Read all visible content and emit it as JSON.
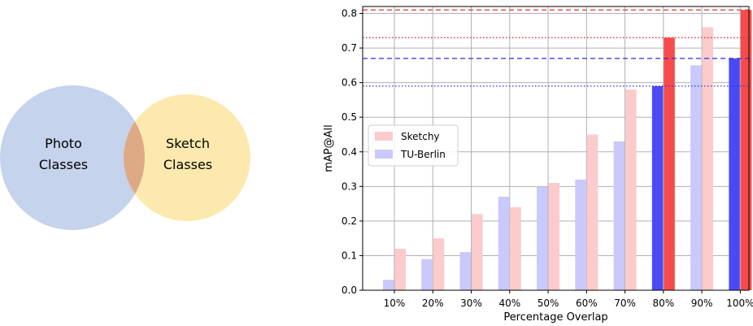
{
  "venn": {
    "left_label_line1": "Photo",
    "left_label_line2": "Classes",
    "right_label_line1": "Sketch",
    "right_label_line2": "Classes",
    "colors": {
      "left": "#c5d3ec",
      "right": "#fde9ae",
      "overlap": "#deaa86"
    }
  },
  "chart_data": {
    "type": "bar",
    "categories": [
      "10%",
      "20%",
      "30%",
      "40%",
      "50%",
      "60%",
      "70%",
      "80%",
      "90%",
      "100%"
    ],
    "series": [
      {
        "name": "TU-Berlin",
        "values": [
          0.03,
          0.09,
          0.11,
          0.27,
          0.3,
          0.32,
          0.43,
          0.59,
          0.65,
          0.67
        ],
        "color": "#c9c9fb",
        "highlight_color": "#4a4af5"
      },
      {
        "name": "Sketchy",
        "values": [
          0.12,
          0.15,
          0.22,
          0.24,
          0.31,
          0.45,
          0.58,
          0.73,
          0.76,
          0.81
        ],
        "color": "#fccbcb",
        "highlight_color": "#f74b4b"
      }
    ],
    "highlighted_categories": [
      "80%",
      "100%"
    ],
    "reference_lines": [
      {
        "value": 0.81,
        "color": "#ee2e2e",
        "style": "dashed"
      },
      {
        "value": 0.73,
        "color": "#ee2e2e",
        "style": "dotted"
      },
      {
        "value": 0.67,
        "color": "#2e2ee0",
        "style": "dashed"
      },
      {
        "value": 0.59,
        "color": "#2e2ee0",
        "style": "dotted"
      }
    ],
    "title": "",
    "xlabel": "Percentage Overlap",
    "ylabel": "mAP@All",
    "ylim": [
      0,
      0.82
    ],
    "yticks": [
      "0.0",
      "0.1",
      "0.2",
      "0.3",
      "0.4",
      "0.5",
      "0.6",
      "0.7",
      "0.8"
    ],
    "grid": true,
    "legend_position": "center-left",
    "legend_order": [
      "Sketchy",
      "TU-Berlin"
    ]
  }
}
